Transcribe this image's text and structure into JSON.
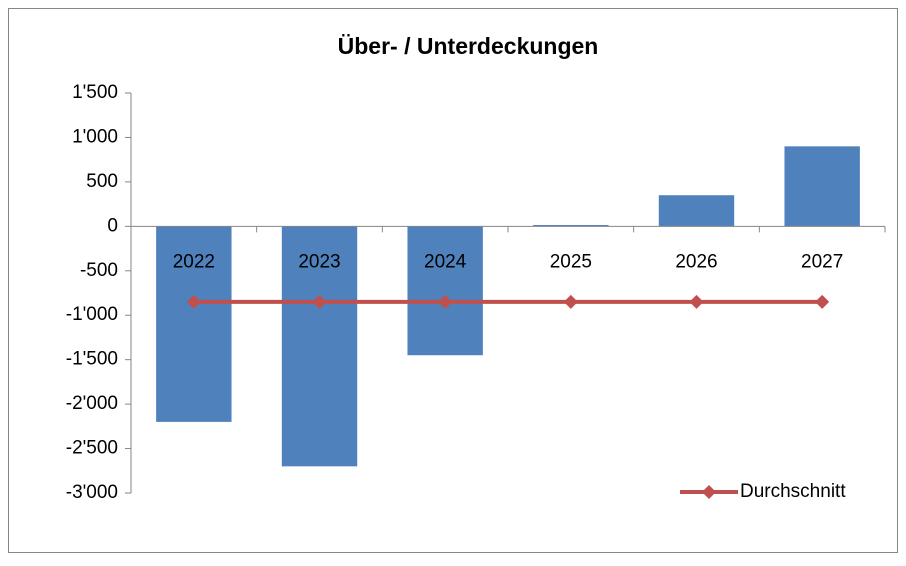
{
  "chart_data": {
    "type": "bar",
    "title": "Über- / Unterdeckungen",
    "categories": [
      "2022",
      "2023",
      "2024",
      "2025",
      "2026",
      "2027"
    ],
    "series": [
      {
        "type": "bar",
        "color": "#4f81bd",
        "values": [
          -2200,
          -2700,
          -1450,
          15,
          350,
          900
        ]
      },
      {
        "type": "line",
        "name": "Durchschnitt",
        "color": "#c0504d",
        "values": [
          -850,
          -850,
          -850,
          -850,
          -850,
          -850
        ]
      }
    ],
    "ylim": [
      -3000,
      1500
    ],
    "yticks": [
      {
        "value": -3000,
        "label": "-3'000"
      },
      {
        "value": -2500,
        "label": "-2'500"
      },
      {
        "value": -2000,
        "label": "-2'000"
      },
      {
        "value": -1500,
        "label": "-1'500"
      },
      {
        "value": -1000,
        "label": "-1'000"
      },
      -500,
      0,
      500,
      {
        "value": 1000,
        "label": "1'000"
      },
      {
        "value": 1500,
        "label": "1'500"
      }
    ],
    "grid": false,
    "legend": "bottom-right"
  }
}
